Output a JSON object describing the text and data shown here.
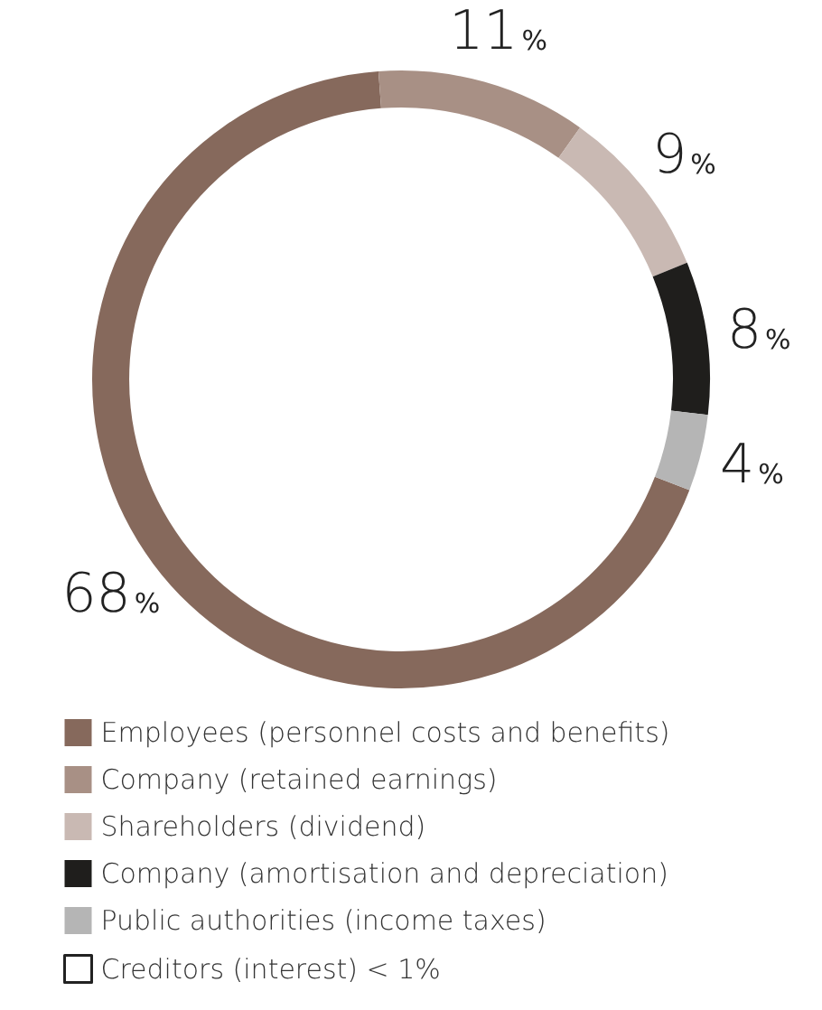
{
  "chart_data": {
    "type": "donut",
    "categories": [
      "Employees (personnel costs and benefits)",
      "Company (retained earnings)",
      "Shareholders (dividend)",
      "Company (amortisation and depreciation)",
      "Public authorities (income taxes)",
      "Creditors (interest) < 1%"
    ],
    "values": [
      68,
      11,
      9,
      8,
      4,
      0
    ],
    "colors": [
      "#86695c",
      "#a89085",
      "#c9b9b3",
      "#1f1e1c",
      "#b5b5b5",
      "#ffffff"
    ],
    "value_labels": [
      "68%",
      "11%",
      "9%",
      "8%",
      "4%",
      null
    ],
    "legend": "bottom"
  }
}
